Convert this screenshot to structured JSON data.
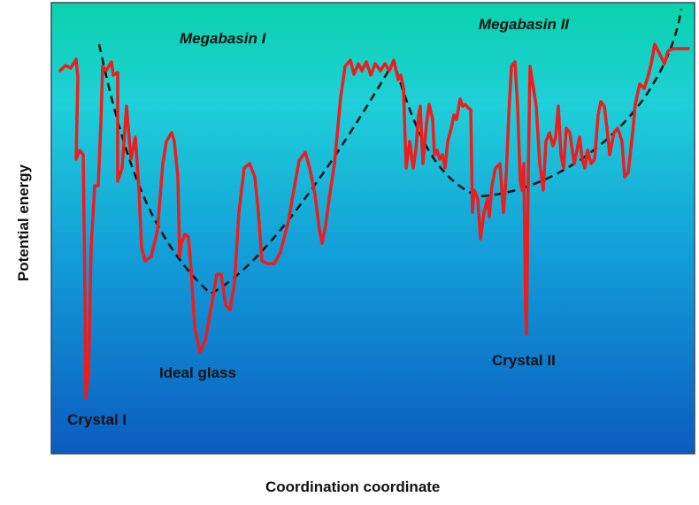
{
  "axes": {
    "x_label": "Coordination coordinate",
    "y_label": "Potential energy"
  },
  "region_labels": {
    "megabasin_1": "Megabasin I",
    "megabasin_2": "Megabasin II"
  },
  "point_labels": {
    "crystal_1": "Crystal I",
    "ideal_glass": "Ideal glass",
    "crystal_2": "Crystal II"
  },
  "colors": {
    "background_top": "#0ad2ac",
    "background_mid": "#1fc2de",
    "background_bottom": "#0b5cc0",
    "landscape_line": "#ee1c1c",
    "envelope_line": "#111111",
    "frame": "#3a4a5a"
  }
}
